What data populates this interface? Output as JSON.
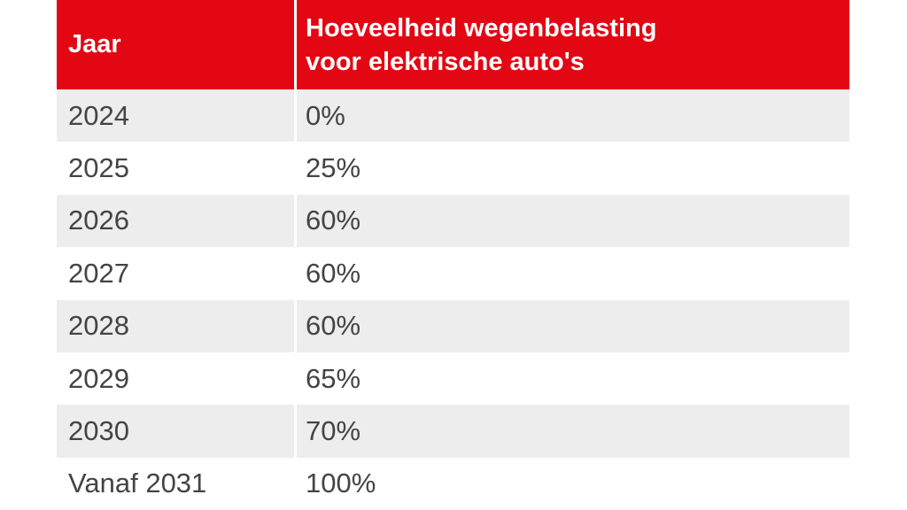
{
  "table": {
    "header": {
      "col1": "Jaar",
      "col2": "Hoeveelheid wegenbelasting\nvoor elektrische auto's"
    },
    "rows": [
      {
        "year": "2024",
        "tax": "0%"
      },
      {
        "year": "2025",
        "tax": "25%"
      },
      {
        "year": "2026",
        "tax": "60%"
      },
      {
        "year": "2027",
        "tax": "60%"
      },
      {
        "year": "2028",
        "tax": "60%"
      },
      {
        "year": "2029",
        "tax": "65%"
      },
      {
        "year": "2030",
        "tax": "70%"
      },
      {
        "year": "Vanaf 2031",
        "tax": "100%"
      }
    ]
  },
  "colors": {
    "header_background": "#e30613",
    "header_text": "#ffffff",
    "row_alt_background": "#ededed",
    "row_background": "#ffffff",
    "body_text": "#444444"
  },
  "chart_data": {
    "type": "table",
    "title": "Hoeveelheid wegenbelasting voor elektrische auto's",
    "columns": [
      "Jaar",
      "Hoeveelheid wegenbelasting voor elektrische auto's"
    ],
    "rows": [
      [
        "2024",
        "0%"
      ],
      [
        "2025",
        "25%"
      ],
      [
        "2026",
        "60%"
      ],
      [
        "2027",
        "60%"
      ],
      [
        "2028",
        "60%"
      ],
      [
        "2029",
        "65%"
      ],
      [
        "2030",
        "70%"
      ],
      [
        "Vanaf 2031",
        "100%"
      ]
    ],
    "values_percent": [
      0,
      25,
      60,
      60,
      60,
      65,
      70,
      100
    ],
    "categories": [
      "2024",
      "2025",
      "2026",
      "2027",
      "2028",
      "2029",
      "2030",
      "Vanaf 2031"
    ]
  }
}
